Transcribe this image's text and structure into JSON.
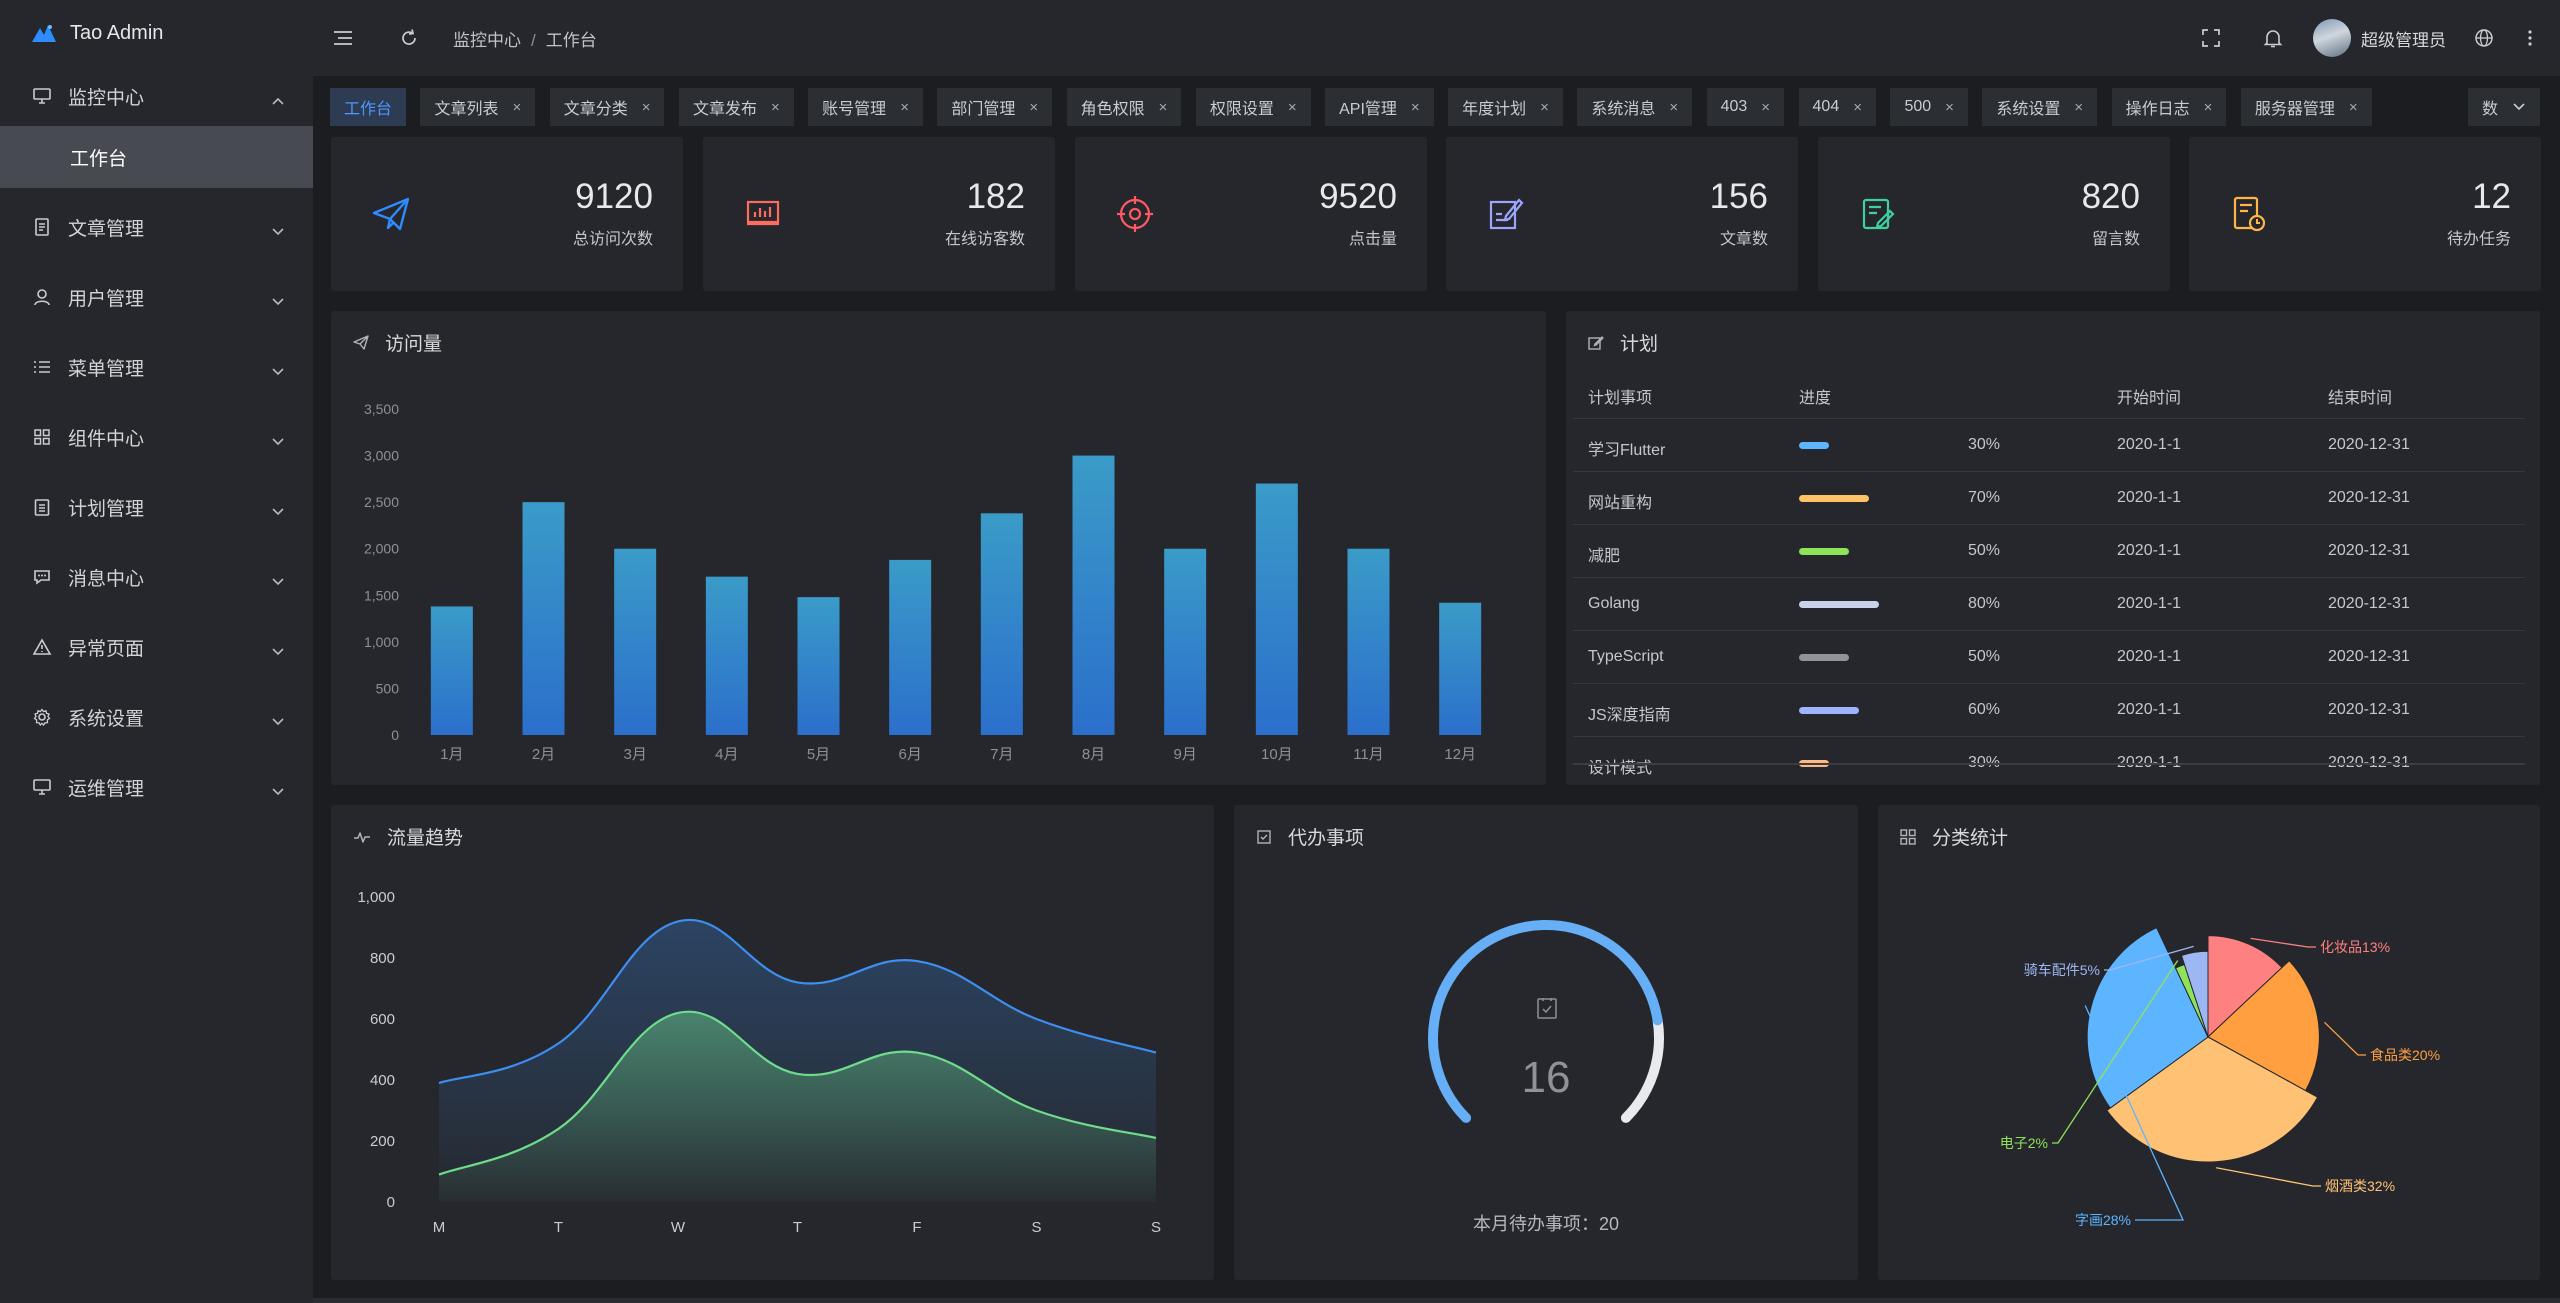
{
  "app": {
    "title": "Tao Admin"
  },
  "sidebar": {
    "items": [
      {
        "label": "监控中心",
        "icon": "monitor-icon",
        "expanded": true,
        "children": [
          {
            "label": "工作台",
            "active": true
          }
        ]
      },
      {
        "label": "文章管理",
        "icon": "document-icon"
      },
      {
        "label": "用户管理",
        "icon": "user-icon"
      },
      {
        "label": "菜单管理",
        "icon": "list-icon"
      },
      {
        "label": "组件中心",
        "icon": "grid-icon"
      },
      {
        "label": "计划管理",
        "icon": "clipboard-icon"
      },
      {
        "label": "消息中心",
        "icon": "message-icon"
      },
      {
        "label": "异常页面",
        "icon": "warning-icon"
      },
      {
        "label": "系统设置",
        "icon": "gear-icon"
      },
      {
        "label": "运维管理",
        "icon": "monitor-icon"
      }
    ]
  },
  "topbar": {
    "breadcrumb": [
      "监控中心",
      "工作台"
    ],
    "separator": "/",
    "user_name": "超级管理员"
  },
  "tabs": {
    "items": [
      "工作台",
      "文章列表",
      "文章分类",
      "文章发布",
      "账号管理",
      "部门管理",
      "角色权限",
      "权限设置",
      "API管理",
      "年度计划",
      "系统消息",
      "403",
      "404",
      "500",
      "系统设置",
      "操作日志",
      "服务器管理"
    ],
    "active_index": 0,
    "overflow_label": "数",
    "close_glyph": "×"
  },
  "stats": [
    {
      "value": "9120",
      "label": "总访问次数",
      "icon": "paper-plane-icon",
      "color": "#2f8cff"
    },
    {
      "value": "182",
      "label": "在线访客数",
      "icon": "presentation-chart-icon",
      "color": "#ff6b5e"
    },
    {
      "value": "9520",
      "label": "点击量",
      "icon": "target-icon",
      "color": "#ff5a64"
    },
    {
      "value": "156",
      "label": "文章数",
      "icon": "edit-document-icon",
      "color": "#9da4ff"
    },
    {
      "value": "820",
      "label": "留言数",
      "icon": "note-edit-icon",
      "color": "#3ed0a1"
    },
    {
      "value": "12",
      "label": "待办任务",
      "icon": "task-clock-icon",
      "color": "#ffb547"
    }
  ],
  "visits_panel": {
    "title": "访问量",
    "icon": "paper-plane-icon"
  },
  "plan_panel": {
    "title": "计划",
    "icon": "edit-icon",
    "columns": [
      "计划事项",
      "进度",
      "开始时间",
      "结束时间"
    ],
    "rows": [
      {
        "name": "学习Flutter",
        "progress": 30,
        "percent": "30%",
        "start": "2020-1-1",
        "end": "2020-12-31",
        "color": "#5eb5ff"
      },
      {
        "name": "网站重构",
        "progress": 70,
        "percent": "70%",
        "start": "2020-1-1",
        "end": "2020-12-31",
        "color": "#ffc266"
      },
      {
        "name": "减肥",
        "progress": 50,
        "percent": "50%",
        "start": "2020-1-1",
        "end": "2020-12-31",
        "color": "#8fe35a"
      },
      {
        "name": "Golang",
        "progress": 80,
        "percent": "80%",
        "start": "2020-1-1",
        "end": "2020-12-31",
        "color": "#c8d3ea"
      },
      {
        "name": "TypeScript",
        "progress": 50,
        "percent": "50%",
        "start": "2020-1-1",
        "end": "2020-12-31",
        "color": "#909399"
      },
      {
        "name": "JS深度指南",
        "progress": 60,
        "percent": "60%",
        "start": "2020-1-1",
        "end": "2020-12-31",
        "color": "#9fb4ff"
      },
      {
        "name": "设计模式",
        "progress": 30,
        "percent": "30%",
        "start": "2020-1-1",
        "end": "2020-12-31",
        "color": "#ffb980"
      }
    ]
  },
  "traffic_panel": {
    "title": "流量趋势",
    "icon": "pulse-icon"
  },
  "todo_panel": {
    "title": "代办事项",
    "icon": "checkbox-icon",
    "gauge_value": "16",
    "gauge_max": 20,
    "footer_label": "本月待办事项：",
    "footer_value": "20"
  },
  "category_panel": {
    "title": "分类统计",
    "icon": "grid-icon"
  },
  "chart_data": [
    {
      "type": "bar",
      "categories": [
        "1月",
        "2月",
        "3月",
        "4月",
        "5月",
        "6月",
        "7月",
        "8月",
        "9月",
        "10月",
        "11月",
        "12月"
      ],
      "values": [
        1380,
        2500,
        2000,
        1700,
        1480,
        1880,
        2380,
        3000,
        2000,
        2700,
        2000,
        1420
      ],
      "ylim": [
        0,
        3500
      ],
      "yticks": [
        "0",
        "500",
        "1,000",
        "1,500",
        "2,000",
        "2,500",
        "3,000",
        "3,500"
      ],
      "colors": {
        "top": "#3a9bc8",
        "bottom": "#2b6fcb"
      }
    },
    {
      "type": "area",
      "categories": [
        "M",
        "T",
        "W",
        "T",
        "F",
        "S",
        "S"
      ],
      "series": [
        {
          "values": [
            390,
            520,
            920,
            720,
            790,
            600,
            490
          ],
          "color": "#3d8ef0"
        },
        {
          "values": [
            90,
            240,
            620,
            420,
            490,
            300,
            210
          ],
          "color": "#6fdc8c"
        }
      ],
      "ylim": [
        0,
        1000
      ],
      "yticks": [
        "0",
        "200",
        "400",
        "600",
        "800",
        "1,000"
      ]
    },
    {
      "type": "pie",
      "rose": true,
      "slices": [
        {
          "label": "化妆品13%",
          "value": 13,
          "color": "#ff8080"
        },
        {
          "label": "食品类20%",
          "value": 20,
          "color": "#ff9f40"
        },
        {
          "label": "烟酒类32%",
          "value": 32,
          "color": "#ffc275"
        },
        {
          "label": "字画28%",
          "value": 28,
          "color": "#5eb5ff"
        },
        {
          "label": "电子2%",
          "value": 2,
          "color": "#8fe35a"
        },
        {
          "label": "骑车配件5%",
          "value": 5,
          "color": "#9db7f5"
        }
      ]
    }
  ]
}
